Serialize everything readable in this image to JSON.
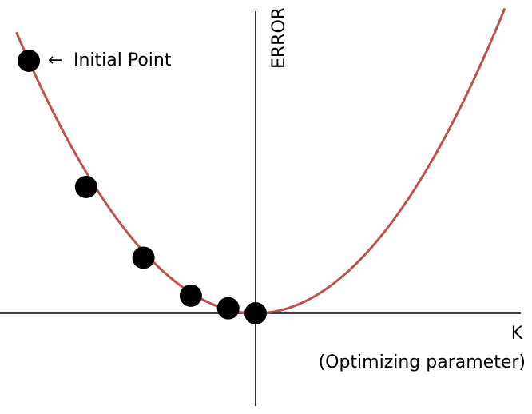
{
  "chart_data": {
    "type": "line",
    "title": "",
    "ylabel": "ERROR",
    "xlabel": "K",
    "xlabel_sub": "(Optimizing parameter)",
    "curve_color": "#c0504d",
    "axis_color": "#000000",
    "point_color": "#000000",
    "xlim": [
      -1,
      1
    ],
    "ylim": [
      -0.3,
      1.2
    ],
    "series": [
      {
        "curve": "parabola",
        "vertex": [
          0,
          0
        ],
        "x_range": [
          -0.96,
          1.0
        ],
        "points": [
          {
            "x": -0.91,
            "y": 1.0
          },
          {
            "x": -0.68,
            "y": 0.5
          },
          {
            "x": -0.45,
            "y": 0.22
          },
          {
            "x": -0.26,
            "y": 0.07
          },
          {
            "x": -0.11,
            "y": 0.02
          },
          {
            "x": 0.0,
            "y": 0.0
          }
        ]
      }
    ],
    "annotations": [
      {
        "text": "Initial Point",
        "arrow": "←",
        "target_point": 0
      }
    ]
  }
}
